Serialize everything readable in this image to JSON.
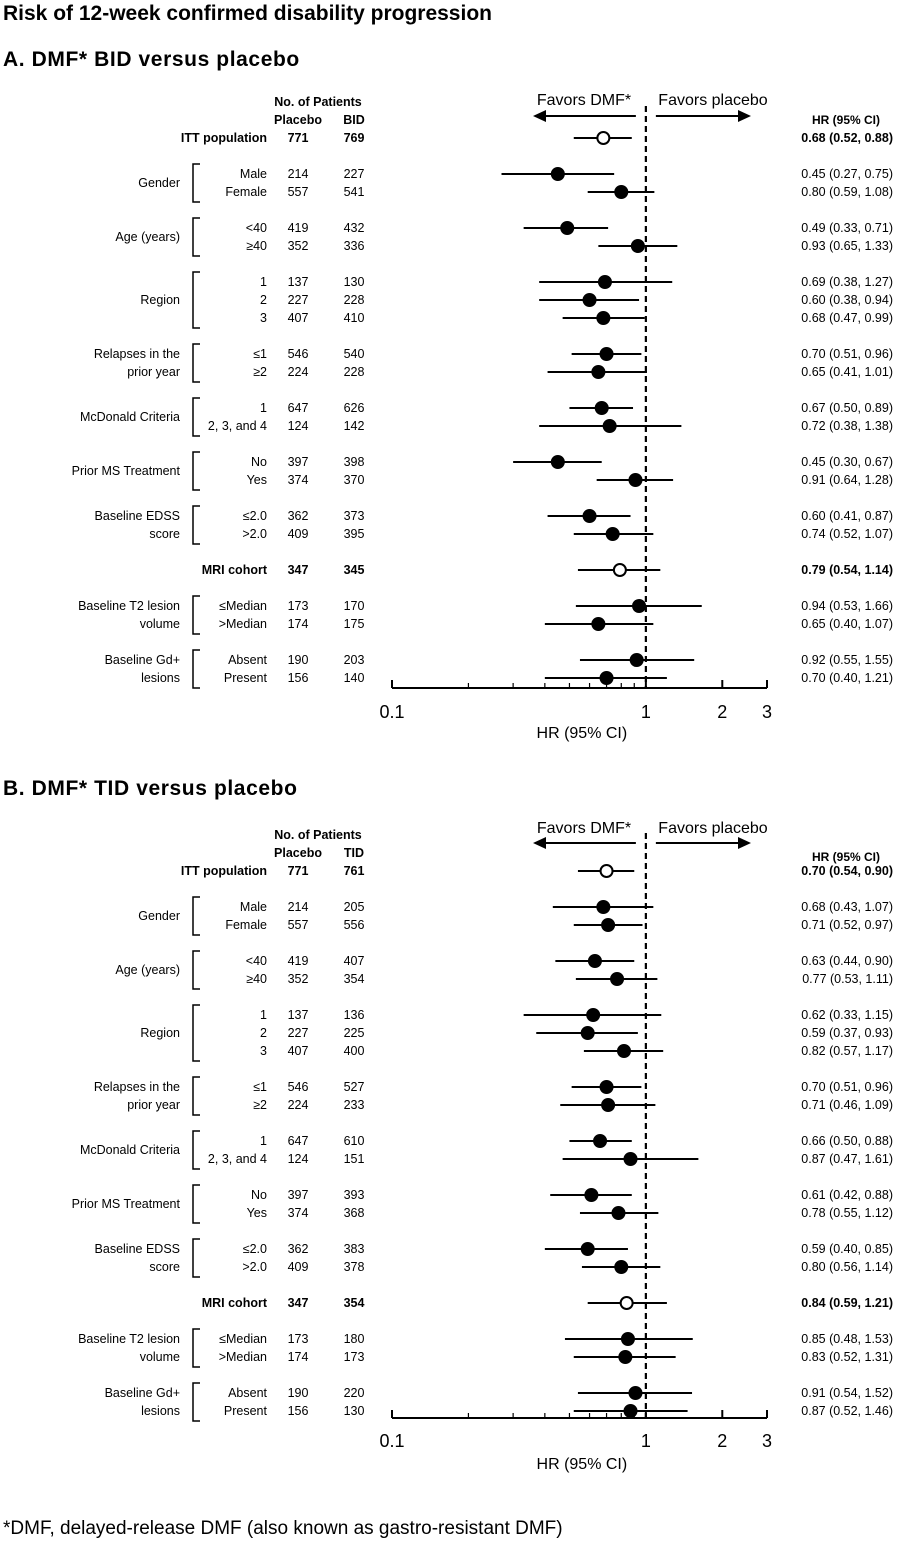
{
  "title": "Risk of 12-week confirmed disability progression",
  "footnote": "*DMF, delayed-release DMF (also known as gastro-resistant DMF)",
  "colors": {
    "ink": "#000000",
    "background": "#ffffff"
  },
  "chart_data": [
    {
      "type": "forest",
      "title": "A. DMF* BID versus placebo",
      "header": {
        "patients": "No. of Patients",
        "placebo": "Placebo",
        "treatment": "BID",
        "ci": "HR (95% CI)"
      },
      "favors_left": "Favors DMF*",
      "favors_right": "Favors placebo",
      "xlabel": "HR (95% CI)",
      "xscale": "log",
      "xlim": [
        0.1,
        3
      ],
      "xticks": [
        {
          "v": 0.1,
          "label": "0.1"
        },
        {
          "v": 1,
          "label": "1"
        },
        {
          "v": 2,
          "label": "2"
        },
        {
          "v": 3,
          "label": "3"
        }
      ],
      "reference_line": 1,
      "rows": [
        {
          "label": "ITT population",
          "group": "",
          "bold": true,
          "open": true,
          "placebo": "771",
          "treatment": "769",
          "hr": 0.68,
          "lo": 0.52,
          "hi": 0.88,
          "ci": "0.68 (0.52, 0.88)"
        },
        {
          "label": "Male",
          "group": "Gender",
          "bold": false,
          "open": false,
          "placebo": "214",
          "treatment": "227",
          "hr": 0.45,
          "lo": 0.27,
          "hi": 0.75,
          "ci": "0.45 (0.27, 0.75)"
        },
        {
          "label": "Female",
          "group": "Gender",
          "bold": false,
          "open": false,
          "placebo": "557",
          "treatment": "541",
          "hr": 0.8,
          "lo": 0.59,
          "hi": 1.08,
          "ci": "0.80 (0.59, 1.08)"
        },
        {
          "label": "<40",
          "group": "Age (years)",
          "bold": false,
          "open": false,
          "placebo": "419",
          "treatment": "432",
          "hr": 0.49,
          "lo": 0.33,
          "hi": 0.71,
          "ci": "0.49 (0.33, 0.71)"
        },
        {
          "label": "≥40",
          "group": "Age (years)",
          "bold": false,
          "open": false,
          "placebo": "352",
          "treatment": "336",
          "hr": 0.93,
          "lo": 0.65,
          "hi": 1.33,
          "ci": "0.93 (0.65, 1.33)"
        },
        {
          "label": "1",
          "group": "Region",
          "bold": false,
          "open": false,
          "placebo": "137",
          "treatment": "130",
          "hr": 0.69,
          "lo": 0.38,
          "hi": 1.27,
          "ci": "0.69 (0.38, 1.27)"
        },
        {
          "label": "2",
          "group": "Region",
          "bold": false,
          "open": false,
          "placebo": "227",
          "treatment": "228",
          "hr": 0.6,
          "lo": 0.38,
          "hi": 0.94,
          "ci": "0.60 (0.38, 0.94)"
        },
        {
          "label": "3",
          "group": "Region",
          "bold": false,
          "open": false,
          "placebo": "407",
          "treatment": "410",
          "hr": 0.68,
          "lo": 0.47,
          "hi": 0.99,
          "ci": "0.68 (0.47, 0.99)"
        },
        {
          "label": "≤1",
          "group": "Relapses in the|prior year",
          "bold": false,
          "open": false,
          "placebo": "546",
          "treatment": "540",
          "hr": 0.7,
          "lo": 0.51,
          "hi": 0.96,
          "ci": "0.70 (0.51, 0.96)"
        },
        {
          "label": "≥2",
          "group": "Relapses in the|prior year",
          "bold": false,
          "open": false,
          "placebo": "224",
          "treatment": "228",
          "hr": 0.65,
          "lo": 0.41,
          "hi": 1.01,
          "ci": "0.65 (0.41, 1.01)"
        },
        {
          "label": "1",
          "group": "McDonald Criteria",
          "bold": false,
          "open": false,
          "placebo": "647",
          "treatment": "626",
          "hr": 0.67,
          "lo": 0.5,
          "hi": 0.89,
          "ci": "0.67 (0.50, 0.89)"
        },
        {
          "label": "2, 3, and 4",
          "group": "McDonald Criteria",
          "bold": false,
          "open": false,
          "placebo": "124",
          "treatment": "142",
          "hr": 0.72,
          "lo": 0.38,
          "hi": 1.38,
          "ci": "0.72 (0.38, 1.38)"
        },
        {
          "label": "No",
          "group": "Prior MS Treatment",
          "bold": false,
          "open": false,
          "placebo": "397",
          "treatment": "398",
          "hr": 0.45,
          "lo": 0.3,
          "hi": 0.67,
          "ci": "0.45 (0.30, 0.67)"
        },
        {
          "label": "Yes",
          "group": "Prior MS Treatment",
          "bold": false,
          "open": false,
          "placebo": "374",
          "treatment": "370",
          "hr": 0.91,
          "lo": 0.64,
          "hi": 1.28,
          "ci": "0.91 (0.64, 1.28)"
        },
        {
          "label": "≤2.0",
          "group": "Baseline EDSS|score",
          "bold": false,
          "open": false,
          "placebo": "362",
          "treatment": "373",
          "hr": 0.6,
          "lo": 0.41,
          "hi": 0.87,
          "ci": "0.60 (0.41, 0.87)"
        },
        {
          "label": ">2.0",
          "group": "Baseline EDSS|score",
          "bold": false,
          "open": false,
          "placebo": "409",
          "treatment": "395",
          "hr": 0.74,
          "lo": 0.52,
          "hi": 1.07,
          "ci": "0.74 (0.52, 1.07)"
        },
        {
          "label": "MRI cohort",
          "group": "",
          "bold": true,
          "open": true,
          "placebo": "347",
          "treatment": "345",
          "hr": 0.79,
          "lo": 0.54,
          "hi": 1.14,
          "ci": "0.79 (0.54, 1.14)"
        },
        {
          "label": "≤Median",
          "group": "Baseline T2 lesion|volume",
          "bold": false,
          "open": false,
          "placebo": "173",
          "treatment": "170",
          "hr": 0.94,
          "lo": 0.53,
          "hi": 1.66,
          "ci": "0.94 (0.53, 1.66)"
        },
        {
          "label": ">Median",
          "group": "Baseline T2 lesion|volume",
          "bold": false,
          "open": false,
          "placebo": "174",
          "treatment": "175",
          "hr": 0.65,
          "lo": 0.4,
          "hi": 1.07,
          "ci": "0.65 (0.40, 1.07)"
        },
        {
          "label": "Absent",
          "group": "Baseline Gd+|lesions",
          "bold": false,
          "open": false,
          "placebo": "190",
          "treatment": "203",
          "hr": 0.92,
          "lo": 0.55,
          "hi": 1.55,
          "ci": "0.92 (0.55, 1.55)"
        },
        {
          "label": "Present",
          "group": "Baseline Gd+|lesions",
          "bold": false,
          "open": false,
          "placebo": "156",
          "treatment": "140",
          "hr": 0.7,
          "lo": 0.4,
          "hi": 1.21,
          "ci": "0.70 (0.40, 1.21)"
        }
      ]
    },
    {
      "type": "forest",
      "title": "B. DMF* TID versus placebo",
      "header": {
        "patients": "No. of Patients",
        "placebo": "Placebo",
        "treatment": "TID",
        "ci": "HR (95% CI)"
      },
      "favors_left": "Favors DMF*",
      "favors_right": "Favors placebo",
      "xlabel": "HR (95% CI)",
      "xscale": "log",
      "xlim": [
        0.1,
        3
      ],
      "xticks": [
        {
          "v": 0.1,
          "label": "0.1"
        },
        {
          "v": 1,
          "label": "1"
        },
        {
          "v": 2,
          "label": "2"
        },
        {
          "v": 3,
          "label": "3"
        }
      ],
      "reference_line": 1,
      "rows": [
        {
          "label": "ITT population",
          "group": "",
          "bold": true,
          "open": true,
          "placebo": "771",
          "treatment": "761",
          "hr": 0.7,
          "lo": 0.54,
          "hi": 0.9,
          "ci": "0.70 (0.54, 0.90)"
        },
        {
          "label": "Male",
          "group": "Gender",
          "bold": false,
          "open": false,
          "placebo": "214",
          "treatment": "205",
          "hr": 0.68,
          "lo": 0.43,
          "hi": 1.07,
          "ci": "0.68 (0.43, 1.07)"
        },
        {
          "label": "Female",
          "group": "Gender",
          "bold": false,
          "open": false,
          "placebo": "557",
          "treatment": "556",
          "hr": 0.71,
          "lo": 0.52,
          "hi": 0.97,
          "ci": "0.71 (0.52, 0.97)"
        },
        {
          "label": "<40",
          "group": "Age (years)",
          "bold": false,
          "open": false,
          "placebo": "419",
          "treatment": "407",
          "hr": 0.63,
          "lo": 0.44,
          "hi": 0.9,
          "ci": "0.63 (0.44, 0.90)"
        },
        {
          "label": "≥40",
          "group": "Age (years)",
          "bold": false,
          "open": false,
          "placebo": "352",
          "treatment": "354",
          "hr": 0.77,
          "lo": 0.53,
          "hi": 1.11,
          "ci": "0.77 (0.53, 1.11)"
        },
        {
          "label": "1",
          "group": "Region",
          "bold": false,
          "open": false,
          "placebo": "137",
          "treatment": "136",
          "hr": 0.62,
          "lo": 0.33,
          "hi": 1.15,
          "ci": "0.62 (0.33, 1.15)"
        },
        {
          "label": "2",
          "group": "Region",
          "bold": false,
          "open": false,
          "placebo": "227",
          "treatment": "225",
          "hr": 0.59,
          "lo": 0.37,
          "hi": 0.93,
          "ci": "0.59 (0.37, 0.93)"
        },
        {
          "label": "3",
          "group": "Region",
          "bold": false,
          "open": false,
          "placebo": "407",
          "treatment": "400",
          "hr": 0.82,
          "lo": 0.57,
          "hi": 1.17,
          "ci": "0.82 (0.57, 1.17)"
        },
        {
          "label": "≤1",
          "group": "Relapses in the|prior year",
          "bold": false,
          "open": false,
          "placebo": "546",
          "treatment": "527",
          "hr": 0.7,
          "lo": 0.51,
          "hi": 0.96,
          "ci": "0.70 (0.51, 0.96)"
        },
        {
          "label": "≥2",
          "group": "Relapses in the|prior year",
          "bold": false,
          "open": false,
          "placebo": "224",
          "treatment": "233",
          "hr": 0.71,
          "lo": 0.46,
          "hi": 1.09,
          "ci": "0.71 (0.46, 1.09)"
        },
        {
          "label": "1",
          "group": "McDonald Criteria",
          "bold": false,
          "open": false,
          "placebo": "647",
          "treatment": "610",
          "hr": 0.66,
          "lo": 0.5,
          "hi": 0.88,
          "ci": "0.66 (0.50, 0.88)"
        },
        {
          "label": "2, 3, and 4",
          "group": "McDonald Criteria",
          "bold": false,
          "open": false,
          "placebo": "124",
          "treatment": "151",
          "hr": 0.87,
          "lo": 0.47,
          "hi": 1.61,
          "ci": "0.87 (0.47, 1.61)"
        },
        {
          "label": "No",
          "group": "Prior MS Treatment",
          "bold": false,
          "open": false,
          "placebo": "397",
          "treatment": "393",
          "hr": 0.61,
          "lo": 0.42,
          "hi": 0.88,
          "ci": "0.61 (0.42, 0.88)"
        },
        {
          "label": "Yes",
          "group": "Prior MS Treatment",
          "bold": false,
          "open": false,
          "placebo": "374",
          "treatment": "368",
          "hr": 0.78,
          "lo": 0.55,
          "hi": 1.12,
          "ci": "0.78 (0.55, 1.12)"
        },
        {
          "label": "≤2.0",
          "group": "Baseline EDSS|score",
          "bold": false,
          "open": false,
          "placebo": "362",
          "treatment": "383",
          "hr": 0.59,
          "lo": 0.4,
          "hi": 0.85,
          "ci": "0.59 (0.40, 0.85)"
        },
        {
          "label": ">2.0",
          "group": "Baseline EDSS|score",
          "bold": false,
          "open": false,
          "placebo": "409",
          "treatment": "378",
          "hr": 0.8,
          "lo": 0.56,
          "hi": 1.14,
          "ci": "0.80 (0.56, 1.14)"
        },
        {
          "label": "MRI cohort",
          "group": "",
          "bold": true,
          "open": true,
          "placebo": "347",
          "treatment": "354",
          "hr": 0.84,
          "lo": 0.59,
          "hi": 1.21,
          "ci": "0.84 (0.59, 1.21)"
        },
        {
          "label": "≤Median",
          "group": "Baseline T2 lesion|volume",
          "bold": false,
          "open": false,
          "placebo": "173",
          "treatment": "180",
          "hr": 0.85,
          "lo": 0.48,
          "hi": 1.53,
          "ci": "0.85 (0.48, 1.53)"
        },
        {
          "label": ">Median",
          "group": "Baseline T2 lesion|volume",
          "bold": false,
          "open": false,
          "placebo": "174",
          "treatment": "173",
          "hr": 0.83,
          "lo": 0.52,
          "hi": 1.31,
          "ci": "0.83 (0.52, 1.31)"
        },
        {
          "label": "Absent",
          "group": "Baseline Gd+|lesions",
          "bold": false,
          "open": false,
          "placebo": "190",
          "treatment": "220",
          "hr": 0.91,
          "lo": 0.54,
          "hi": 1.52,
          "ci": "0.91 (0.54, 1.52)"
        },
        {
          "label": "Present",
          "group": "Baseline Gd+|lesions",
          "bold": false,
          "open": false,
          "placebo": "156",
          "treatment": "130",
          "hr": 0.87,
          "lo": 0.52,
          "hi": 1.46,
          "ci": "0.87 (0.52, 1.46)"
        }
      ]
    }
  ]
}
